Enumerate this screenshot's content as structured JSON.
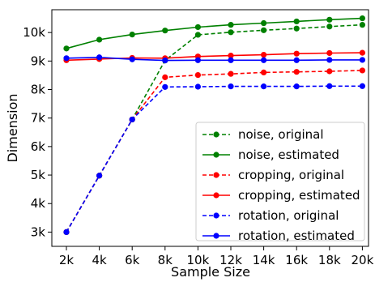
{
  "chart_data": {
    "type": "line",
    "xlabel": "Sample Size",
    "ylabel": "Dimension",
    "categories": [
      "2k",
      "4k",
      "6k",
      "8k",
      "10k",
      "12k",
      "14k",
      "16k",
      "18k",
      "20k"
    ],
    "ylim": [
      2500,
      10800
    ],
    "yticks": [
      {
        "value": 3000,
        "label": "3k"
      },
      {
        "value": 4000,
        "label": "4k"
      },
      {
        "value": 5000,
        "label": "5k"
      },
      {
        "value": 6000,
        "label": "6k"
      },
      {
        "value": 7000,
        "label": "7k"
      },
      {
        "value": 8000,
        "label": "8k"
      },
      {
        "value": 9000,
        "label": "9k"
      },
      {
        "value": 10000,
        "label": "10k"
      }
    ],
    "grid": false,
    "legend_position": "lower-right",
    "series": [
      {
        "name": "noise, original",
        "color": "#008000",
        "style": "dashed",
        "values": [
          3000,
          4980,
          6950,
          9020,
          9920,
          10010,
          10080,
          10140,
          10210,
          10270
        ]
      },
      {
        "name": "noise, estimated",
        "color": "#008000",
        "style": "solid",
        "values": [
          9440,
          9750,
          9930,
          10070,
          10190,
          10270,
          10330,
          10390,
          10450,
          10500
        ]
      },
      {
        "name": "cropping, original",
        "color": "#ff0000",
        "style": "dashed",
        "values": [
          3000,
          4980,
          6950,
          8430,
          8510,
          8550,
          8600,
          8620,
          8640,
          8670
        ]
      },
      {
        "name": "cropping, estimated",
        "color": "#ff0000",
        "style": "solid",
        "values": [
          9030,
          9070,
          9110,
          9100,
          9160,
          9190,
          9220,
          9260,
          9280,
          9290
        ]
      },
      {
        "name": "rotation, original",
        "color": "#0000ff",
        "style": "dashed",
        "values": [
          3000,
          4980,
          6950,
          8090,
          8100,
          8110,
          8110,
          8110,
          8120,
          8120
        ]
      },
      {
        "name": "rotation, estimated",
        "color": "#0000ff",
        "style": "solid",
        "values": [
          9100,
          9130,
          9060,
          9020,
          9030,
          9030,
          9030,
          9030,
          9040,
          9040
        ]
      }
    ]
  }
}
